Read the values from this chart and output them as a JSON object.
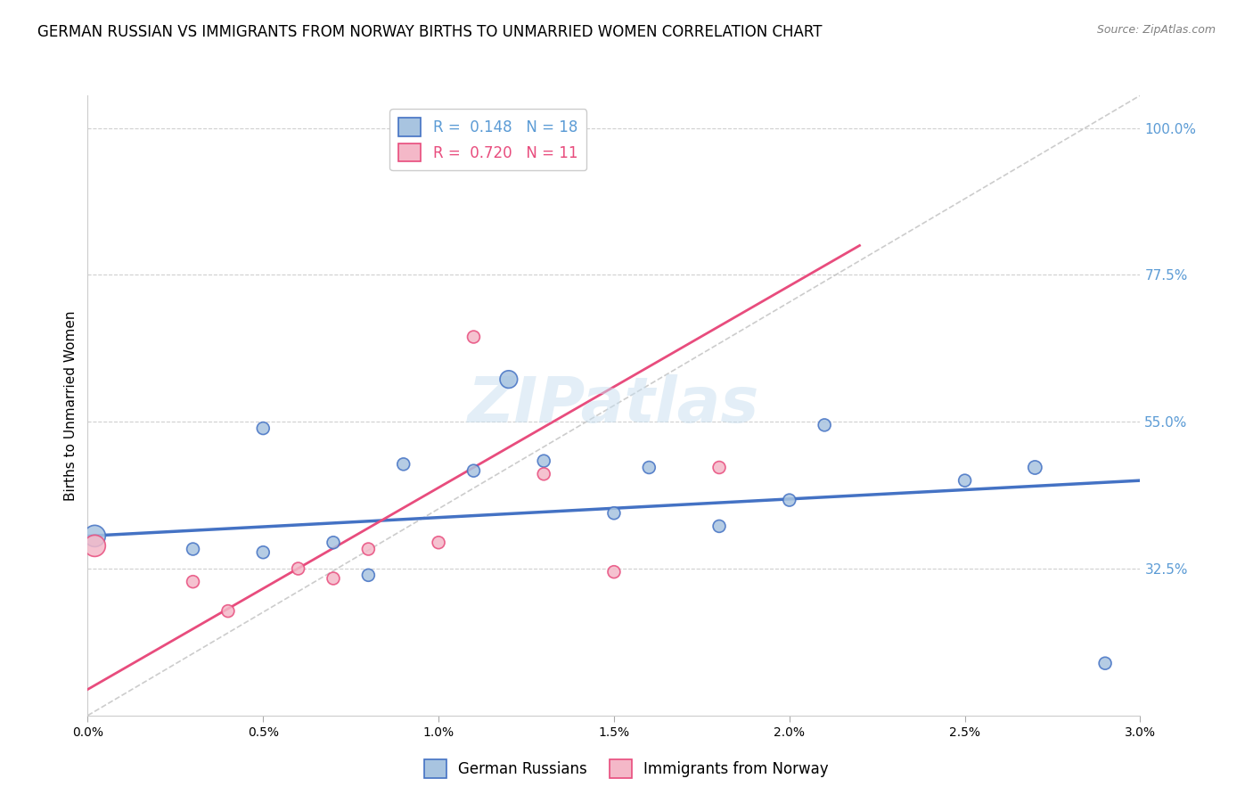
{
  "title": "GERMAN RUSSIAN VS IMMIGRANTS FROM NORWAY BIRTHS TO UNMARRIED WOMEN CORRELATION CHART",
  "source": "Source: ZipAtlas.com",
  "ylabel_label": "Births to Unmarried Women",
  "xlim": [
    0.0,
    0.03
  ],
  "ylim": [
    0.1,
    1.05
  ],
  "legend_blue_r": "0.148",
  "legend_blue_n": "18",
  "legend_pink_r": "0.720",
  "legend_pink_n": "11",
  "blue_scatter_x": [
    0.0002,
    0.003,
    0.005,
    0.005,
    0.007,
    0.008,
    0.009,
    0.011,
    0.012,
    0.013,
    0.015,
    0.016,
    0.018,
    0.02,
    0.021,
    0.025,
    0.027,
    0.029
  ],
  "blue_scatter_y": [
    0.375,
    0.355,
    0.35,
    0.54,
    0.365,
    0.315,
    0.485,
    0.475,
    0.615,
    0.49,
    0.41,
    0.48,
    0.39,
    0.43,
    0.545,
    0.46,
    0.48,
    0.18
  ],
  "blue_scatter_size": [
    300,
    100,
    100,
    100,
    100,
    100,
    100,
    100,
    200,
    100,
    100,
    100,
    100,
    100,
    100,
    100,
    120,
    100
  ],
  "pink_scatter_x": [
    0.0002,
    0.003,
    0.004,
    0.006,
    0.007,
    0.008,
    0.01,
    0.011,
    0.013,
    0.015,
    0.018
  ],
  "pink_scatter_y": [
    0.36,
    0.305,
    0.26,
    0.325,
    0.31,
    0.355,
    0.365,
    0.68,
    0.47,
    0.32,
    0.48
  ],
  "pink_scatter_size": [
    300,
    100,
    100,
    100,
    100,
    100,
    100,
    100,
    100,
    100,
    100
  ],
  "blue_line_x": [
    0.0,
    0.03
  ],
  "blue_line_y": [
    0.375,
    0.46
  ],
  "pink_line_x": [
    0.0,
    0.022
  ],
  "pink_line_y": [
    0.14,
    0.82
  ],
  "diagonal_line_x": [
    0.0,
    0.03
  ],
  "diagonal_line_y": [
    0.1,
    1.05
  ],
  "blue_color": "#a8c4e0",
  "blue_line_color": "#4472c4",
  "pink_color": "#f4b8c8",
  "pink_line_color": "#e84c7d",
  "diagonal_color": "#c0c0c0",
  "background_color": "#ffffff",
  "grid_color": "#d0d0d0",
  "right_axis_color": "#5b9bd5",
  "title_fontsize": 12,
  "axis_label_fontsize": 11,
  "tick_fontsize": 10,
  "legend_fontsize": 12
}
